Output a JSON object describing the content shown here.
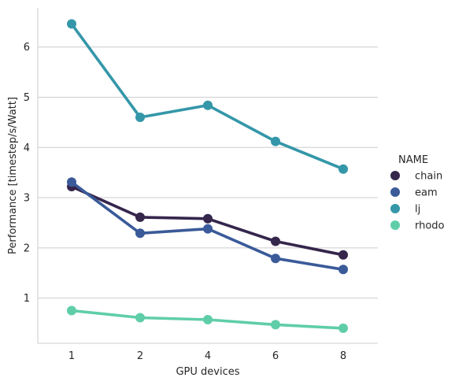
{
  "chart_data": {
    "type": "line",
    "title": "",
    "xlabel": "GPU devices",
    "ylabel": "Performance [timestep/s/Watt]",
    "categories": [
      "1",
      "2",
      "4",
      "6",
      "8"
    ],
    "ylim": [
      0.1,
      6.78
    ],
    "yticks": [
      1,
      2,
      3,
      4,
      5,
      6
    ],
    "grid": "horizontal",
    "legend": {
      "title": "NAME",
      "placement": "right"
    },
    "series": [
      {
        "name": "chain",
        "color": "#35264c",
        "values": [
          3.22,
          2.61,
          2.58,
          2.13,
          1.86
        ]
      },
      {
        "name": "eam",
        "color": "#3a5a99",
        "values": [
          3.31,
          2.29,
          2.38,
          1.79,
          1.57
        ]
      },
      {
        "name": "lj",
        "color": "#3497a9",
        "values": [
          6.46,
          4.6,
          4.84,
          4.12,
          3.57
        ]
      },
      {
        "name": "rhodo",
        "color": "#5fcea8",
        "values": [
          0.75,
          0.61,
          0.57,
          0.47,
          0.4
        ]
      }
    ]
  }
}
